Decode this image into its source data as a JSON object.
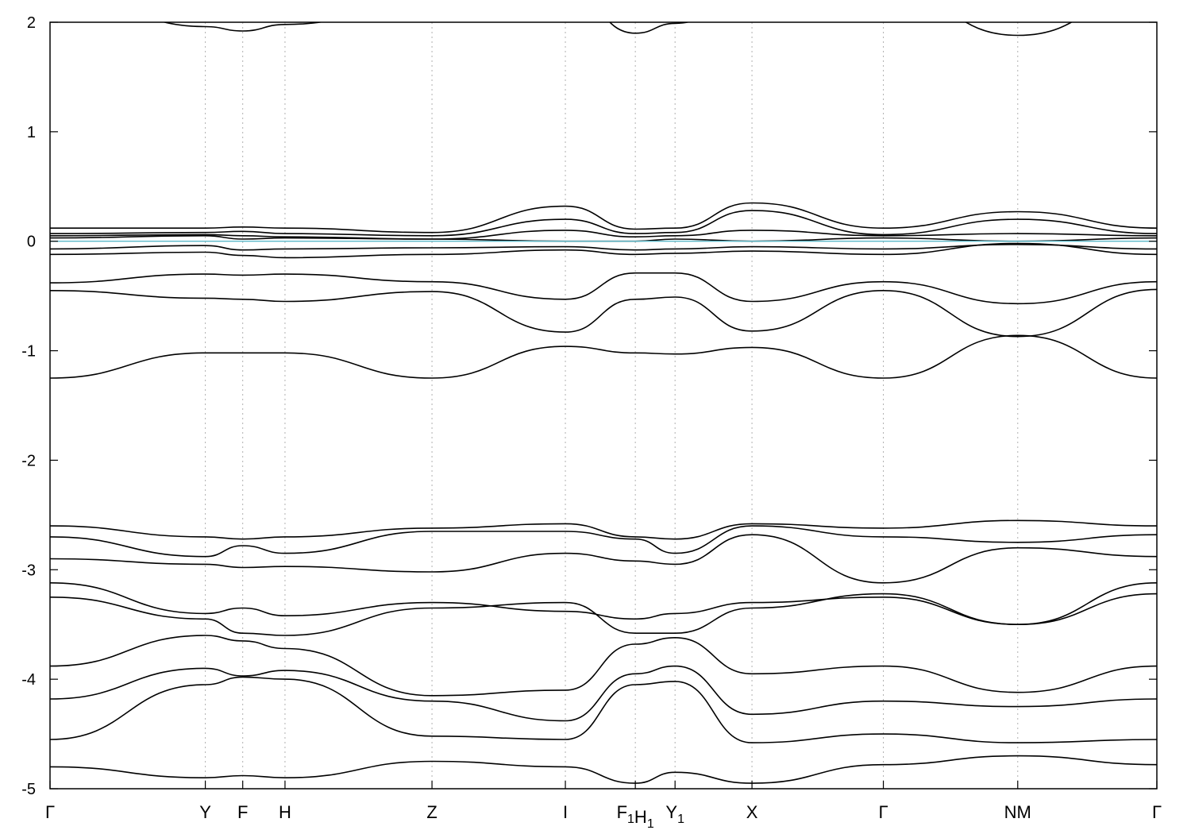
{
  "chart_data": {
    "type": "line",
    "title": "",
    "xlabel": "",
    "ylabel": "",
    "ylim": [
      -5,
      2
    ],
    "yticks": [
      2,
      1,
      0,
      -1,
      -2,
      -3,
      -4,
      -5
    ],
    "ytick_labels": [
      "2",
      "1",
      "0",
      "-1",
      "-2",
      "-3",
      "-4",
      "-5"
    ],
    "grid": "vertical dotted lines at high-symmetry points",
    "legend": "none",
    "colors": {
      "bands": "#000000",
      "fermi_level": "#5bb8c8",
      "grid": "#b0b0b0"
    },
    "kpath": [
      {
        "main": "Γ",
        "sub": "",
        "x": 0.0
      },
      {
        "main": "Y",
        "sub": "",
        "x": 0.1403
      },
      {
        "main": "F",
        "sub": "",
        "x": 0.1741
      },
      {
        "main": "H",
        "sub": "",
        "x": 0.2123
      },
      {
        "main": "Z",
        "sub": "",
        "x": 0.3451
      },
      {
        "main": "I",
        "sub": "",
        "x": 0.4656
      },
      {
        "main": "F",
        "sub": "1",
        "x": 0.5288
      },
      {
        "main": "H",
        "sub": "1",
        "x": 0.5288
      },
      {
        "main": "Y",
        "sub": "1",
        "x": 0.5647
      },
      {
        "main": "X",
        "sub": "",
        "x": 0.6342
      },
      {
        "main": "Γ",
        "sub": "",
        "x": 0.7529
      },
      {
        "main": "N",
        "sub": "",
        "x": 0.8743
      },
      {
        "main": "M",
        "sub": "",
        "x": 0.8743
      },
      {
        "main": "Γ",
        "sub": "",
        "x": 1.0
      }
    ],
    "fermi_level": {
      "y": 0
    },
    "series_x": [
      0.0,
      0.1403,
      0.1741,
      0.2123,
      0.3451,
      0.4656,
      0.5288,
      0.5647,
      0.6342,
      0.7529,
      0.8743,
      1.0
    ],
    "series": [
      {
        "values": [
          0.12,
          0.12,
          0.13,
          0.12,
          0.08,
          0.32,
          0.11,
          0.12,
          0.35,
          0.12,
          0.27,
          0.12
        ]
      },
      {
        "values": [
          0.07,
          0.08,
          0.09,
          0.07,
          0.05,
          0.2,
          0.07,
          0.08,
          0.28,
          0.06,
          0.2,
          0.07
        ]
      },
      {
        "values": [
          0.05,
          0.06,
          0.05,
          0.04,
          0.02,
          0.1,
          0.04,
          0.05,
          0.1,
          0.05,
          0.07,
          0.05
        ]
      },
      {
        "values": [
          0.03,
          0.05,
          0.02,
          0.03,
          0.02,
          0.0,
          0.0,
          0.02,
          0.0,
          0.03,
          0.0,
          0.03
        ]
      },
      {
        "values": [
          -0.07,
          -0.04,
          -0.08,
          -0.07,
          -0.06,
          -0.05,
          -0.08,
          -0.07,
          -0.05,
          -0.07,
          -0.03,
          -0.07
        ]
      },
      {
        "values": [
          -0.12,
          -0.1,
          -0.13,
          -0.15,
          -0.12,
          -0.08,
          -0.12,
          -0.11,
          -0.09,
          -0.12,
          -0.02,
          -0.12
        ]
      },
      {
        "values": [
          -0.38,
          -0.3,
          -0.31,
          -0.3,
          -0.37,
          -0.53,
          -0.29,
          -0.29,
          -0.55,
          -0.37,
          -0.57,
          -0.37
        ]
      },
      {
        "values": [
          -0.45,
          -0.52,
          -0.53,
          -0.55,
          -0.46,
          -0.83,
          -0.53,
          -0.51,
          -0.82,
          -0.45,
          -0.87,
          -0.44
        ]
      },
      {
        "values": [
          -1.25,
          -1.02,
          -1.02,
          -1.02,
          -1.25,
          -0.96,
          -1.02,
          -1.03,
          -0.97,
          -1.25,
          -0.86,
          -1.25
        ]
      },
      {
        "values": [
          -2.6,
          -2.7,
          -2.72,
          -2.7,
          -2.62,
          -2.58,
          -2.7,
          -2.72,
          -2.58,
          -2.62,
          -2.55,
          -2.6
        ]
      },
      {
        "values": [
          -2.7,
          -2.88,
          -2.78,
          -2.85,
          -2.65,
          -2.65,
          -2.72,
          -2.85,
          -2.6,
          -2.7,
          -2.75,
          -2.68
        ]
      },
      {
        "values": [
          -2.9,
          -2.95,
          -2.98,
          -2.97,
          -3.02,
          -2.85,
          -2.92,
          -2.95,
          -2.68,
          -3.12,
          -2.8,
          -2.88
        ]
      },
      {
        "values": [
          -3.12,
          -3.4,
          -3.35,
          -3.42,
          -3.3,
          -3.38,
          -3.45,
          -3.4,
          -3.3,
          -3.25,
          -3.5,
          -3.12
        ]
      },
      {
        "values": [
          -3.25,
          -3.45,
          -3.58,
          -3.6,
          -3.35,
          -3.3,
          -3.58,
          -3.58,
          -3.35,
          -3.22,
          -3.5,
          -3.22
        ]
      },
      {
        "values": [
          -3.88,
          -3.6,
          -3.65,
          -3.72,
          -4.15,
          -4.1,
          -3.68,
          -3.62,
          -3.95,
          -3.88,
          -4.12,
          -3.88
        ]
      },
      {
        "values": [
          -4.18,
          -3.9,
          -3.97,
          -3.92,
          -4.2,
          -4.38,
          -3.95,
          -3.88,
          -4.32,
          -4.2,
          -4.25,
          -4.18
        ]
      },
      {
        "values": [
          -4.55,
          -4.05,
          -3.98,
          -4.0,
          -4.52,
          -4.55,
          -4.05,
          -4.02,
          -4.58,
          -4.5,
          -4.58,
          -4.55
        ]
      },
      {
        "values": [
          -4.8,
          -4.9,
          -4.88,
          -4.9,
          -4.75,
          -4.8,
          -4.95,
          -4.85,
          -4.95,
          -4.78,
          -4.7,
          -4.78
        ]
      },
      {
        "values": [
          2.3,
          1.96,
          1.92,
          1.98,
          2.2,
          2.3,
          1.9,
          1.99,
          2.25,
          2.3,
          1.88,
          2.3
        ]
      }
    ]
  }
}
